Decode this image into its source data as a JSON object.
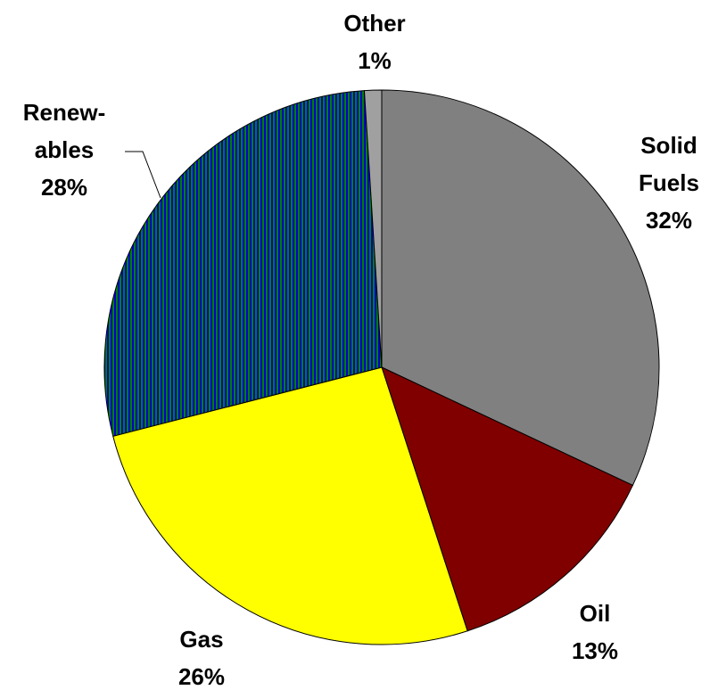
{
  "chart_data": {
    "type": "pie",
    "categories": [
      [
        "Solid",
        "Fuels"
      ],
      [
        "Oil"
      ],
      [
        "Gas"
      ],
      [
        "Renew-",
        "ables"
      ],
      [
        "Other"
      ]
    ],
    "values": [
      32,
      13,
      26,
      28,
      1
    ],
    "value_labels": [
      "32%",
      "13%",
      "26%",
      "28%",
      "1%"
    ],
    "colors": [
      "#808080",
      "#800000",
      "#ffff00",
      [
        "#0000cc",
        "#008000"
      ],
      "#a0a0a0"
    ]
  }
}
